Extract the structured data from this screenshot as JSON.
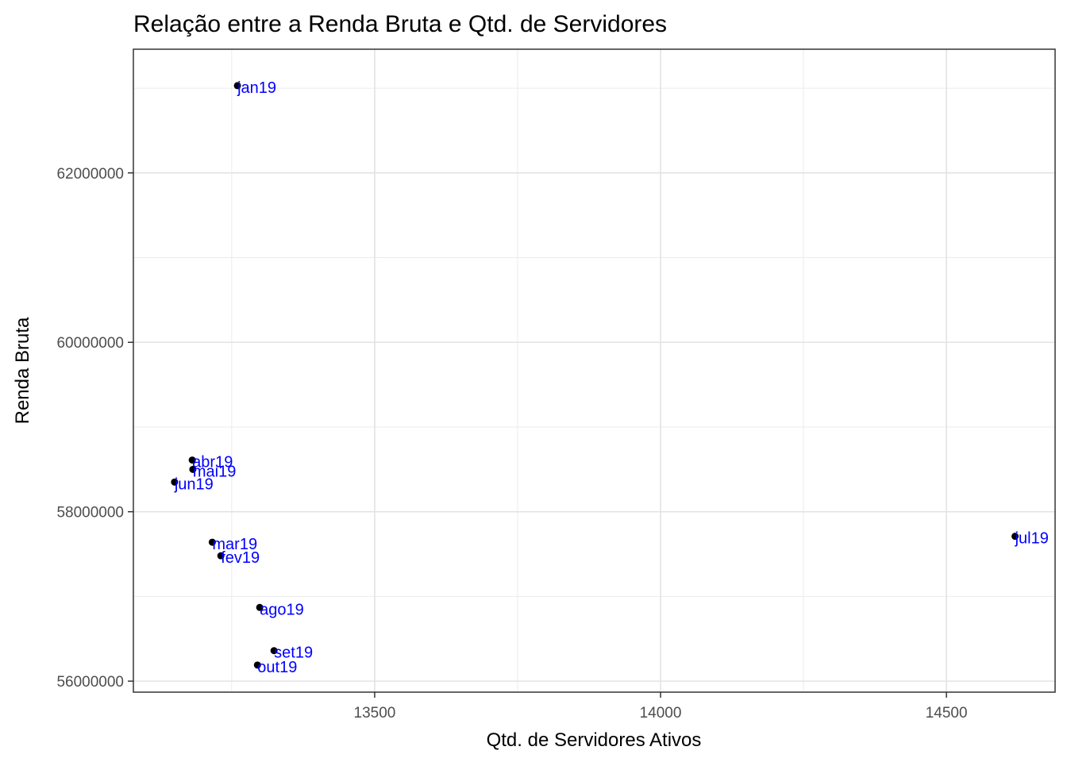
{
  "chart_data": {
    "type": "scatter",
    "title": "Relação entre a Renda Bruta e Qtd. de Servidores",
    "xlabel": "Qtd. de Servidores Ativos",
    "ylabel": "Renda Bruta",
    "xlim": [
      13078,
      14690
    ],
    "ylim": [
      55870000,
      63460000
    ],
    "x_ticks": [
      13500,
      14000,
      14500
    ],
    "x_tick_labels": [
      "13500",
      "14000",
      "14500"
    ],
    "y_ticks": [
      56000000,
      58000000,
      60000000,
      62000000
    ],
    "y_tick_labels": [
      "56000000",
      "58000000",
      "60000000",
      "62000000"
    ],
    "grid": true,
    "point_color": "#000000",
    "label_color": "#0000ff",
    "points": [
      {
        "label": "jan19",
        "x": 13260,
        "y": 63030000
      },
      {
        "label": "fev19",
        "x": 13231,
        "y": 57480000
      },
      {
        "label": "mar19",
        "x": 13216,
        "y": 57640000
      },
      {
        "label": "abr19",
        "x": 13181,
        "y": 58610000
      },
      {
        "label": "mai19",
        "x": 13182,
        "y": 58500000
      },
      {
        "label": "jun19",
        "x": 13150,
        "y": 58350000
      },
      {
        "label": "jul19",
        "x": 14620,
        "y": 57710000
      },
      {
        "label": "ago19",
        "x": 13299,
        "y": 56870000
      },
      {
        "label": "set19",
        "x": 13324,
        "y": 56360000
      },
      {
        "label": "out19",
        "x": 13295,
        "y": 56190000
      }
    ]
  }
}
